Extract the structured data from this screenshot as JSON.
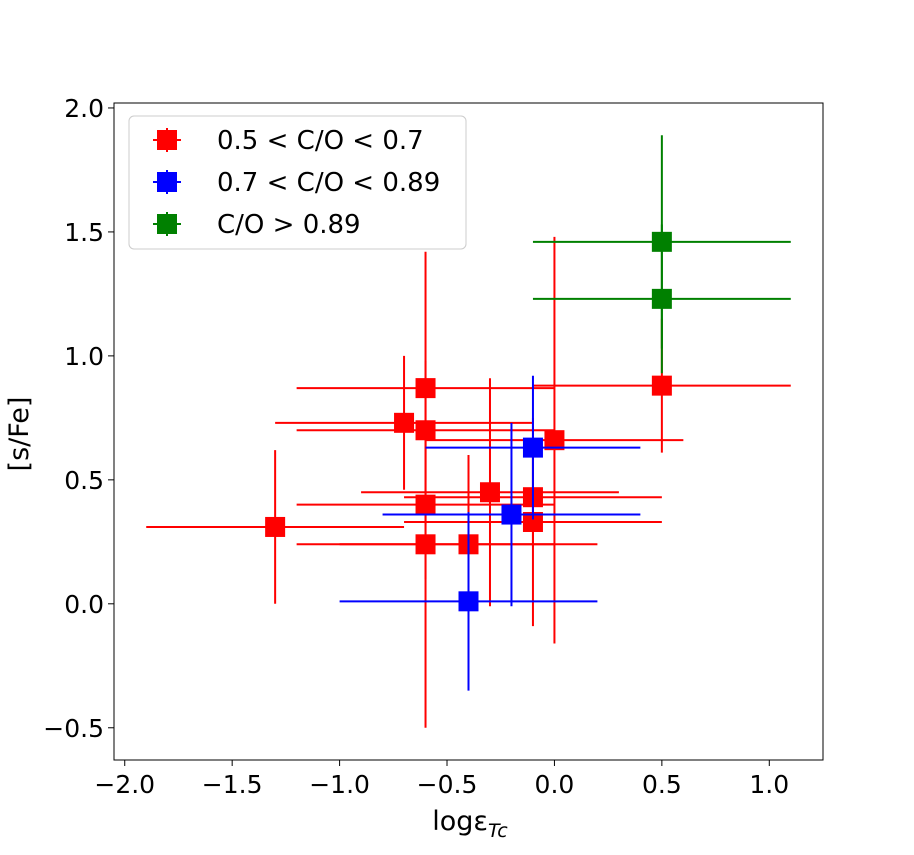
{
  "chart_data": {
    "type": "scatter",
    "title": "",
    "xlabel": "logε",
    "xlabel_sub": "Tc",
    "ylabel": "[s/Fe]",
    "xlim": [
      -2.05,
      1.25
    ],
    "ylim": [
      -0.63,
      2.02
    ],
    "xticks": [
      -2.0,
      -1.5,
      -1.0,
      -0.5,
      0.0,
      0.5,
      1.0
    ],
    "xtick_labels": [
      "−2.0",
      "−1.5",
      "−1.0",
      "−0.5",
      "0.0",
      "0.5",
      "1.0"
    ],
    "yticks": [
      -0.5,
      0.0,
      0.5,
      1.0,
      1.5,
      2.0
    ],
    "ytick_labels": [
      "−0.5",
      "0.0",
      "0.5",
      "1.0",
      "1.5",
      "2.0"
    ],
    "grid": false,
    "legend_position": "top-left",
    "series": [
      {
        "name": "0.5 < C/O < 0.7",
        "color": "#ff0000",
        "points": [
          {
            "x": -1.3,
            "y": 0.31,
            "xerr": 0.6,
            "yerr": 0.31
          },
          {
            "x": -0.7,
            "y": 0.73,
            "xerr": 0.6,
            "yerr": 0.27
          },
          {
            "x": -0.6,
            "y": 0.87,
            "xerr": 0.6,
            "yerr": 0.55
          },
          {
            "x": -0.6,
            "y": 0.7,
            "xerr": 0.6,
            "yerr": 0.2
          },
          {
            "x": -0.6,
            "y": 0.4,
            "xerr": 0.6,
            "yerr": 0.3
          },
          {
            "x": -0.6,
            "y": 0.24,
            "xerr": 0.6,
            "yerr": 0.74
          },
          {
            "x": -0.4,
            "y": 0.24,
            "xerr": 0.6,
            "yerr": 0.36
          },
          {
            "x": -0.3,
            "y": 0.45,
            "xerr": 0.6,
            "yerr": 0.46
          },
          {
            "x": -0.1,
            "y": 0.43,
            "xerr": 0.6,
            "yerr": 0.2
          },
          {
            "x": -0.1,
            "y": 0.33,
            "xerr": 0.6,
            "yerr": 0.42
          },
          {
            "x": 0.0,
            "y": 0.66,
            "xerr": 0.6,
            "yerr": 0.82
          },
          {
            "x": 0.5,
            "y": 0.88,
            "xerr": 0.6,
            "yerr": 0.27
          }
        ]
      },
      {
        "name": "0.7 < C/O < 0.89",
        "color": "#0000ff",
        "points": [
          {
            "x": -0.1,
            "y": 0.63,
            "xerr": 0.5,
            "yerr": 0.29
          },
          {
            "x": -0.2,
            "y": 0.36,
            "xerr": 0.6,
            "yerr": 0.37
          },
          {
            "x": -0.4,
            "y": 0.01,
            "xerr": 0.6,
            "yerr": 0.36
          }
        ]
      },
      {
        "name": "C/O > 0.89",
        "color": "#008000",
        "points": [
          {
            "x": 0.5,
            "y": 1.46,
            "xerr": 0.6,
            "yerr": 0.43
          },
          {
            "x": 0.5,
            "y": 1.23,
            "xerr": 0.6,
            "yerr": 0.3
          }
        ]
      }
    ]
  }
}
